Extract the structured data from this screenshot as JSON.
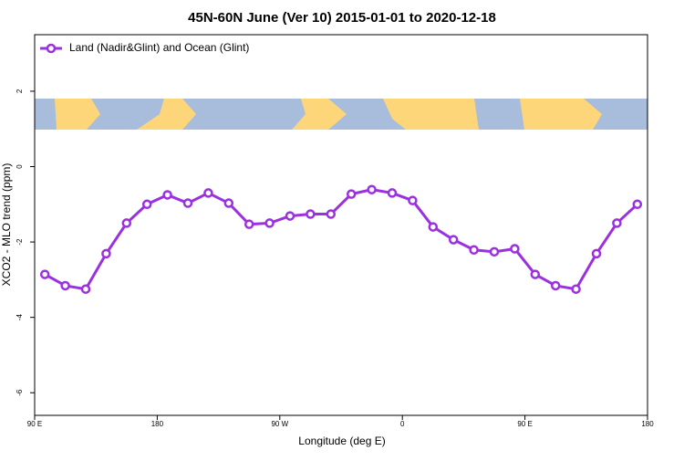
{
  "chart_data": {
    "type": "line",
    "title": "45N-60N June (Ver 10)   2015-01-01 to 2020-12-18",
    "x_label": "Longitude (deg E)",
    "y_label": "XCO2 - MLO trend (ppm)",
    "x": [
      97.5,
      112.5,
      127.5,
      142.5,
      157.5,
      172.5,
      187.5,
      202.5,
      217.5,
      232.5,
      247.5,
      262.5,
      277.5,
      292.5,
      307.5,
      322.5,
      337.5,
      352.5,
      367.5,
      382.5,
      397.5,
      412.5,
      427.5,
      442.5,
      457.5,
      472.5,
      487.5,
      502.5,
      517.5,
      532.5
    ],
    "series": [
      {
        "name": "Land (Nadir&Glint) and Ocean (Glint)",
        "color": "#9b30e0",
        "values": [
          -2.86,
          -3.16,
          -3.25,
          -2.31,
          -1.5,
          -1.0,
          -0.75,
          -0.97,
          -0.7,
          -0.97,
          -1.53,
          -1.5,
          -1.31,
          -1.26,
          -1.26,
          -0.73,
          -0.61,
          -0.7,
          -0.9,
          -1.6,
          -1.94,
          -2.21,
          -2.26,
          -2.18,
          -2.86,
          -3.16,
          -3.25,
          -2.31,
          -1.5,
          -1.0
        ]
      }
    ],
    "xlim": [
      90,
      540
    ],
    "xticks": [
      {
        "value": 90,
        "label": "90 E"
      },
      {
        "value": 180,
        "label": "180"
      },
      {
        "value": 270,
        "label": "90 W"
      },
      {
        "value": 360,
        "label": "0"
      },
      {
        "value": 450,
        "label": "90 E"
      },
      {
        "value": 540,
        "label": "180"
      }
    ],
    "ylim": [
      -6.6,
      3.5
    ],
    "yticks": [
      -6,
      -4,
      -2,
      0,
      2
    ],
    "legend": "top-left"
  }
}
